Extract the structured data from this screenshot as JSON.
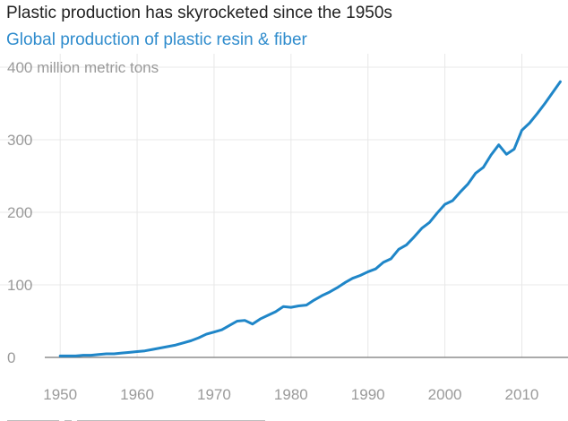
{
  "chart_data": {
    "type": "line",
    "title": "Plastic production has skyrocketed since the 1950s",
    "subtitle": "Global production of plastic resin & fiber",
    "top_tick_label": "400 million metric tons",
    "xlabel": "",
    "ylabel": "",
    "xlim": [
      1948,
      2016
    ],
    "ylim": [
      0,
      400
    ],
    "x_ticks": [
      1950,
      1960,
      1970,
      1980,
      1990,
      2000,
      2010
    ],
    "y_ticks": [
      0,
      100,
      200,
      300,
      400
    ],
    "grid": true,
    "colors": {
      "series": "#1f86c8",
      "subtitle": "#2f8ccd"
    },
    "series": [
      {
        "x": [
          1950,
          1951,
          1952,
          1953,
          1954,
          1955,
          1956,
          1957,
          1958,
          1959,
          1960,
          1961,
          1962,
          1963,
          1964,
          1965,
          1966,
          1967,
          1968,
          1969,
          1970,
          1971,
          1972,
          1973,
          1974,
          1975,
          1976,
          1977,
          1978,
          1979,
          1980,
          1981,
          1982,
          1983,
          1984,
          1985,
          1986,
          1987,
          1988,
          1989,
          1990,
          1991,
          1992,
          1993,
          1994,
          1995,
          1996,
          1997,
          1998,
          1999,
          2000,
          2001,
          2002,
          2003,
          2004,
          2005,
          2006,
          2007,
          2008,
          2009,
          2010,
          2011,
          2012,
          2013,
          2014,
          2015
        ],
        "values": [
          2,
          2,
          2,
          3,
          3,
          4,
          5,
          5,
          6,
          7,
          8,
          9,
          11,
          13,
          15,
          17,
          20,
          23,
          27,
          32,
          35,
          38,
          44,
          50,
          51,
          46,
          53,
          58,
          63,
          70,
          69,
          71,
          72,
          79,
          85,
          90,
          96,
          103,
          109,
          113,
          118,
          122,
          131,
          136,
          149,
          155,
          166,
          178,
          186,
          199,
          211,
          216,
          228,
          239,
          254,
          262,
          279,
          293,
          280,
          287,
          313,
          323,
          336,
          350,
          365,
          380
        ]
      }
    ]
  }
}
